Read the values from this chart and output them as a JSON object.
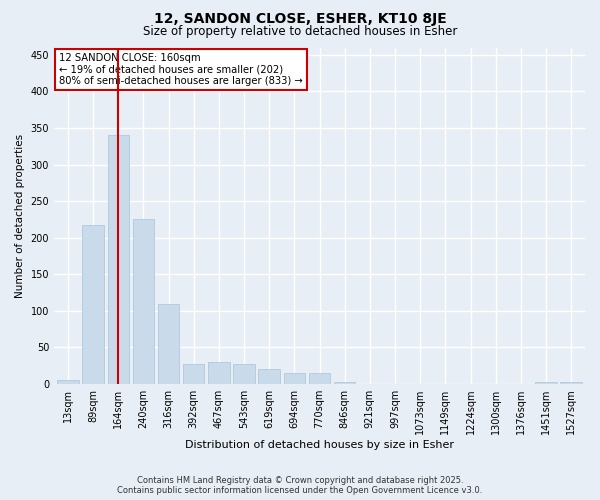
{
  "title1": "12, SANDON CLOSE, ESHER, KT10 8JE",
  "title2": "Size of property relative to detached houses in Esher",
  "xlabel": "Distribution of detached houses by size in Esher",
  "ylabel": "Number of detached properties",
  "categories": [
    "13sqm",
    "89sqm",
    "164sqm",
    "240sqm",
    "316sqm",
    "392sqm",
    "467sqm",
    "543sqm",
    "619sqm",
    "694sqm",
    "770sqm",
    "846sqm",
    "921sqm",
    "997sqm",
    "1073sqm",
    "1149sqm",
    "1224sqm",
    "1300sqm",
    "1376sqm",
    "1451sqm",
    "1527sqm"
  ],
  "values": [
    5,
    218,
    340,
    225,
    110,
    27,
    30,
    27,
    20,
    15,
    15,
    3,
    0,
    0,
    0,
    0,
    0,
    0,
    0,
    2,
    3
  ],
  "bar_color": "#c9daea",
  "bar_edge_color": "#a8c4d8",
  "vline_color": "#cc0000",
  "vline_index": 2,
  "annotation_text": "12 SANDON CLOSE: 160sqm\n← 19% of detached houses are smaller (202)\n80% of semi-detached houses are larger (833) →",
  "annotation_box_color": "#ffffff",
  "annotation_box_edge": "#cc0000",
  "footer1": "Contains HM Land Registry data © Crown copyright and database right 2025.",
  "footer2": "Contains public sector information licensed under the Open Government Licence v3.0.",
  "ylim": [
    0,
    460
  ],
  "yticks": [
    0,
    50,
    100,
    150,
    200,
    250,
    300,
    350,
    400,
    450
  ],
  "bg_color": "#e8eef5",
  "grid_color": "#ffffff"
}
